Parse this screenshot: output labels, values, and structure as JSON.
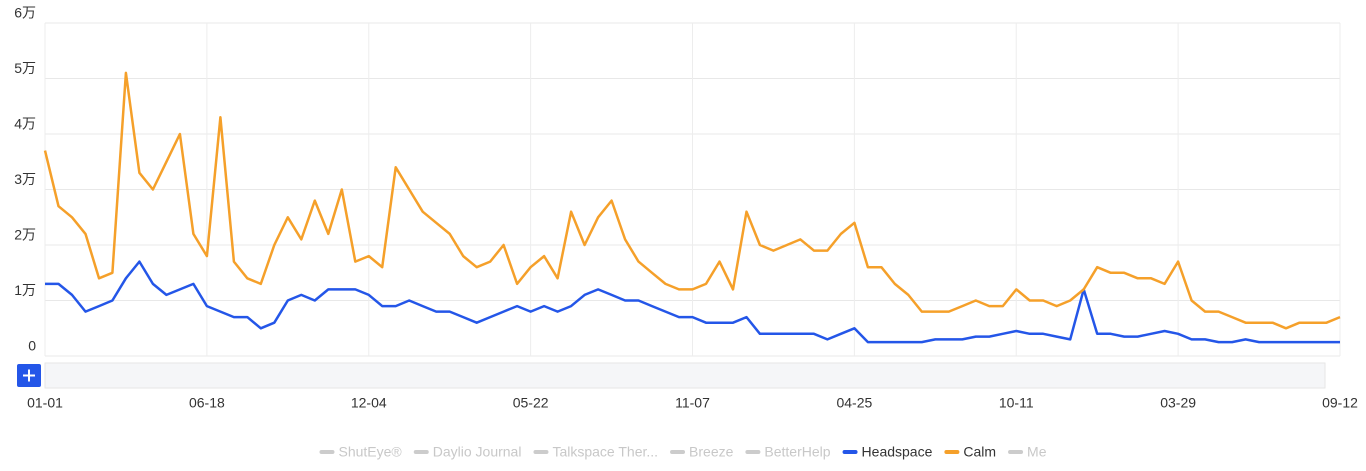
{
  "chart_data": {
    "type": "line",
    "categories": [
      "01-01",
      null,
      null,
      null,
      null,
      null,
      null,
      null,
      null,
      null,
      null,
      null,
      "06-18",
      null,
      null,
      null,
      null,
      null,
      null,
      null,
      null,
      null,
      null,
      null,
      "12-04",
      null,
      null,
      null,
      null,
      null,
      null,
      null,
      null,
      null,
      null,
      null,
      "05-22",
      null,
      null,
      null,
      null,
      null,
      null,
      null,
      null,
      null,
      null,
      null,
      "11-07",
      null,
      null,
      null,
      null,
      null,
      null,
      null,
      null,
      null,
      null,
      null,
      "04-25",
      null,
      null,
      null,
      null,
      null,
      null,
      null,
      null,
      null,
      null,
      null,
      "10-11",
      null,
      null,
      null,
      null,
      null,
      null,
      null,
      null,
      null,
      null,
      null,
      "03-29",
      null,
      null,
      null,
      null,
      null,
      null,
      null,
      null,
      null,
      null,
      null,
      "09-12"
    ],
    "ylim": [
      0,
      60000
    ],
    "yticks": [
      0,
      {
        "value": 10000,
        "label": "1万"
      },
      {
        "value": 20000,
        "label": "2万"
      },
      {
        "value": 30000,
        "label": "3万"
      },
      {
        "value": 40000,
        "label": "4万"
      },
      {
        "value": 50000,
        "label": "5万"
      },
      {
        "value": 60000,
        "label": "6万"
      }
    ],
    "grid": true,
    "legend": "bottom",
    "series": [
      {
        "name": "ShutEye®",
        "visible": false
      },
      {
        "name": "Daylio Journal",
        "visible": false
      },
      {
        "name": "Talkspace Ther...",
        "visible": false
      },
      {
        "name": "Breeze",
        "visible": false
      },
      {
        "name": "BetterHelp",
        "visible": false
      },
      {
        "name": "Headspace",
        "color": "#2456e8",
        "visible": true,
        "values": [
          13000,
          13000,
          11000,
          8000,
          9000,
          10000,
          14000,
          17000,
          13000,
          11000,
          12000,
          13000,
          9000,
          8000,
          7000,
          7000,
          5000,
          6000,
          10000,
          11000,
          10000,
          12000,
          12000,
          12000,
          11000,
          9000,
          9000,
          10000,
          9000,
          8000,
          8000,
          7000,
          6000,
          7000,
          8000,
          9000,
          8000,
          9000,
          8000,
          9000,
          11000,
          12000,
          11000,
          10000,
          10000,
          9000,
          8000,
          7000,
          7000,
          6000,
          6000,
          6000,
          7000,
          4000,
          4000,
          4000,
          4000,
          4000,
          3000,
          4000,
          5000,
          2500,
          2500,
          2500,
          2500,
          2500,
          3000,
          3000,
          3000,
          3500,
          3500,
          4000,
          4500,
          4000,
          4000,
          3500,
          3000,
          12000,
          4000,
          4000,
          3500,
          3500,
          4000,
          4500,
          4000,
          3000,
          3000,
          2500,
          2500,
          3000,
          2500,
          2500,
          2500,
          2500,
          2500,
          2500,
          2500
        ]
      },
      {
        "name": "Calm",
        "color": "#f5a02a",
        "visible": true,
        "values": [
          37000,
          27000,
          25000,
          22000,
          14000,
          15000,
          51000,
          33000,
          30000,
          35000,
          40000,
          22000,
          18000,
          43000,
          17000,
          14000,
          13000,
          20000,
          25000,
          21000,
          28000,
          22000,
          30000,
          17000,
          18000,
          16000,
          34000,
          30000,
          26000,
          24000,
          22000,
          18000,
          16000,
          17000,
          20000,
          13000,
          16000,
          18000,
          14000,
          26000,
          20000,
          25000,
          28000,
          21000,
          17000,
          15000,
          13000,
          12000,
          12000,
          13000,
          17000,
          12000,
          26000,
          20000,
          19000,
          20000,
          21000,
          19000,
          19000,
          22000,
          24000,
          16000,
          16000,
          13000,
          11000,
          8000,
          8000,
          8000,
          9000,
          10000,
          9000,
          9000,
          12000,
          10000,
          10000,
          9000,
          10000,
          12000,
          16000,
          15000,
          15000,
          14000,
          14000,
          13000,
          17000,
          10000,
          8000,
          8000,
          7000,
          6000,
          6000,
          6000,
          5000,
          6000,
          6000,
          6000,
          7000
        ]
      },
      {
        "name": "Me",
        "visible": false
      }
    ]
  }
}
